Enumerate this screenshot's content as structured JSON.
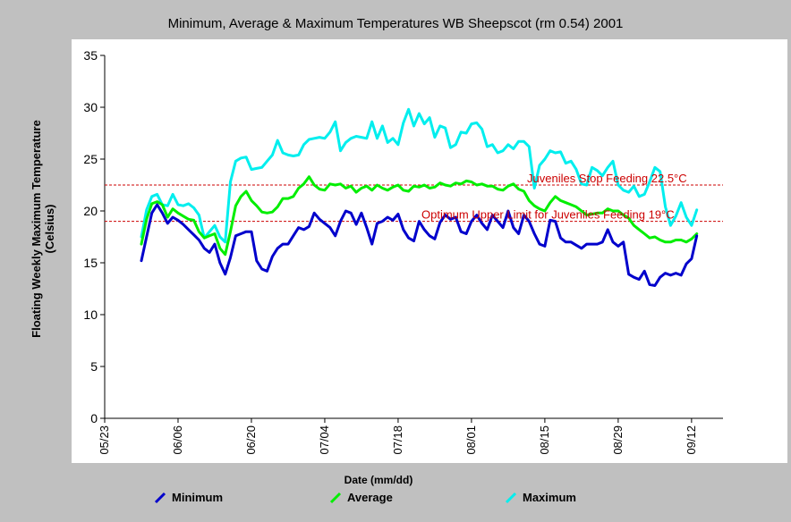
{
  "chart_data": {
    "type": "line",
    "title": "Minimum, Average & Maximum Temperatures WB Sheepscot (rm 0.54) 2001",
    "xlabel": "Date (mm/dd)",
    "ylabel": "Floating Weekly Maximum Temperature (Celsius)",
    "ylabel_lines": [
      "Floating Weekly Maximum Temperature",
      "(Celsius)"
    ],
    "ylim": [
      0,
      35
    ],
    "yticks": [
      0,
      5,
      10,
      15,
      20,
      25,
      30,
      35
    ],
    "xlim": [
      "05/23",
      "09/18"
    ],
    "xticks": [
      "05/23",
      "06/06",
      "06/20",
      "07/04",
      "07/18",
      "08/01",
      "08/15",
      "08/29",
      "09/12"
    ],
    "grid": false,
    "legend_position": "bottom",
    "reference_lines": [
      {
        "label": "Juveniles Stop Feeding 22.5°C",
        "value": 22.5,
        "color": "#cc0000"
      },
      {
        "label": "Optimum Upper Limit for Juveniles Feeding 19°C",
        "value": 19,
        "color": "#cc0000"
      }
    ],
    "x": [
      "05/30",
      "05/31",
      "06/01",
      "06/02",
      "06/03",
      "06/04",
      "06/05",
      "06/06",
      "06/07",
      "06/08",
      "06/09",
      "06/10",
      "06/11",
      "06/12",
      "06/13",
      "06/14",
      "06/15",
      "06/16",
      "06/17",
      "06/18",
      "06/19",
      "06/20",
      "06/21",
      "06/22",
      "06/23",
      "06/24",
      "06/25",
      "06/26",
      "06/27",
      "06/28",
      "06/29",
      "06/30",
      "07/01",
      "07/02",
      "07/03",
      "07/04",
      "07/05",
      "07/06",
      "07/07",
      "07/08",
      "07/09",
      "07/10",
      "07/11",
      "07/12",
      "07/13",
      "07/14",
      "07/15",
      "07/16",
      "07/17",
      "07/18",
      "07/19",
      "07/20",
      "07/21",
      "07/22",
      "07/23",
      "07/24",
      "07/25",
      "07/26",
      "07/27",
      "07/28",
      "07/29",
      "07/30",
      "07/31",
      "08/01",
      "08/02",
      "08/03",
      "08/04",
      "08/05",
      "08/06",
      "08/07",
      "08/08",
      "08/09",
      "08/10",
      "08/11",
      "08/12",
      "08/13",
      "08/14",
      "08/15",
      "08/16",
      "08/17",
      "08/18",
      "08/19",
      "08/20",
      "08/21",
      "08/22",
      "08/23",
      "08/24",
      "08/25",
      "08/26",
      "08/27",
      "08/28",
      "08/29",
      "08/30",
      "08/31",
      "09/01",
      "09/02",
      "09/03",
      "09/04",
      "09/05",
      "09/06",
      "09/07",
      "09/08",
      "09/09",
      "09/10",
      "09/11",
      "09/12",
      "09/13"
    ],
    "series": [
      {
        "name": "Minimum",
        "color": "#0000cc",
        "values": [
          15.2,
          17.5,
          19.8,
          20.6,
          19.8,
          18.8,
          19.4,
          19.1,
          18.7,
          18.2,
          17.7,
          17.2,
          16.4,
          16.0,
          16.8,
          15.0,
          13.9,
          15.5,
          17.6,
          17.8,
          18.0,
          18.0,
          15.2,
          14.4,
          14.2,
          15.6,
          16.4,
          16.8,
          16.8,
          17.6,
          18.4,
          18.2,
          18.5,
          19.8,
          19.2,
          18.8,
          18.4,
          17.6,
          19.0,
          20.0,
          19.8,
          18.7,
          19.8,
          18.4,
          16.8,
          18.8,
          19.0,
          19.4,
          19.1,
          19.7,
          18.2,
          17.4,
          17.1,
          19.0,
          18.2,
          17.6,
          17.3,
          18.9,
          19.6,
          19.2,
          19.4,
          18.0,
          17.8,
          19.0,
          19.6,
          18.8,
          18.2,
          19.6,
          19.0,
          18.4,
          20.0,
          18.4,
          17.8,
          19.6,
          19.0,
          17.8,
          16.8,
          16.6,
          19.1,
          19.0,
          17.4,
          17.0,
          17.0,
          16.7,
          16.4,
          16.8,
          16.8,
          16.8,
          17.0,
          18.2,
          17.0,
          16.6,
          17.0,
          13.9,
          13.6,
          13.4,
          14.2,
          12.9,
          12.8,
          13.6,
          14.0,
          13.8,
          14.0,
          13.8,
          14.9,
          15.4,
          17.6
        ]
      },
      {
        "name": "Average",
        "color": "#00ee00",
        "values": [
          16.8,
          19.2,
          20.7,
          20.9,
          20.6,
          19.4,
          20.2,
          19.8,
          19.5,
          19.2,
          19.1,
          18.0,
          17.4,
          17.6,
          17.8,
          16.4,
          15.8,
          18.0,
          20.5,
          21.4,
          21.9,
          21.0,
          20.5,
          19.9,
          19.8,
          19.9,
          20.4,
          21.2,
          21.2,
          21.4,
          22.2,
          22.6,
          23.3,
          22.5,
          22.1,
          22.0,
          22.6,
          22.5,
          22.6,
          22.2,
          22.4,
          21.8,
          22.2,
          22.4,
          22.0,
          22.5,
          22.2,
          22.0,
          22.3,
          22.5,
          22.0,
          21.9,
          22.4,
          22.3,
          22.5,
          22.2,
          22.3,
          22.7,
          22.5,
          22.4,
          22.7,
          22.6,
          22.9,
          22.8,
          22.5,
          22.6,
          22.4,
          22.4,
          22.1,
          22.0,
          22.4,
          22.6,
          22.1,
          21.9,
          21.0,
          20.5,
          20.2,
          20.0,
          20.8,
          21.4,
          21.0,
          20.8,
          20.6,
          20.4,
          20.0,
          19.6,
          19.7,
          19.8,
          19.8,
          20.2,
          20.0,
          20.0,
          19.6,
          19.3,
          18.6,
          18.2,
          17.8,
          17.4,
          17.5,
          17.2,
          17.0,
          17.0,
          17.2,
          17.2,
          17.0,
          17.3,
          17.8
        ]
      },
      {
        "name": "Maximum",
        "color": "#00eeee",
        "values": [
          17.5,
          20.1,
          21.4,
          21.6,
          20.6,
          20.5,
          21.6,
          20.6,
          20.5,
          20.7,
          20.3,
          19.6,
          17.4,
          18.0,
          18.6,
          17.5,
          17.0,
          22.8,
          24.8,
          25.1,
          25.2,
          24.0,
          24.1,
          24.2,
          24.8,
          25.4,
          26.8,
          25.6,
          25.4,
          25.3,
          25.4,
          26.4,
          26.9,
          27.0,
          27.1,
          27.0,
          27.6,
          28.6,
          25.8,
          26.6,
          27.0,
          27.2,
          27.1,
          27.0,
          28.6,
          27.0,
          28.2,
          26.6,
          27.0,
          26.4,
          28.5,
          29.8,
          28.2,
          29.4,
          28.4,
          29.0,
          27.1,
          28.2,
          28.0,
          26.1,
          26.4,
          27.6,
          27.5,
          28.4,
          28.5,
          27.9,
          26.2,
          26.4,
          25.6,
          25.8,
          26.4,
          26.0,
          26.7,
          26.7,
          26.2,
          22.2,
          24.4,
          25.0,
          25.8,
          25.6,
          25.7,
          24.6,
          24.8,
          24.0,
          22.6,
          22.5,
          24.2,
          23.9,
          23.4,
          24.2,
          24.8,
          22.5,
          22.0,
          21.8,
          22.4,
          21.4,
          21.6,
          22.8,
          24.2,
          23.8,
          20.4,
          18.6,
          19.5,
          20.8,
          19.4,
          18.6,
          20.1
        ]
      }
    ]
  }
}
